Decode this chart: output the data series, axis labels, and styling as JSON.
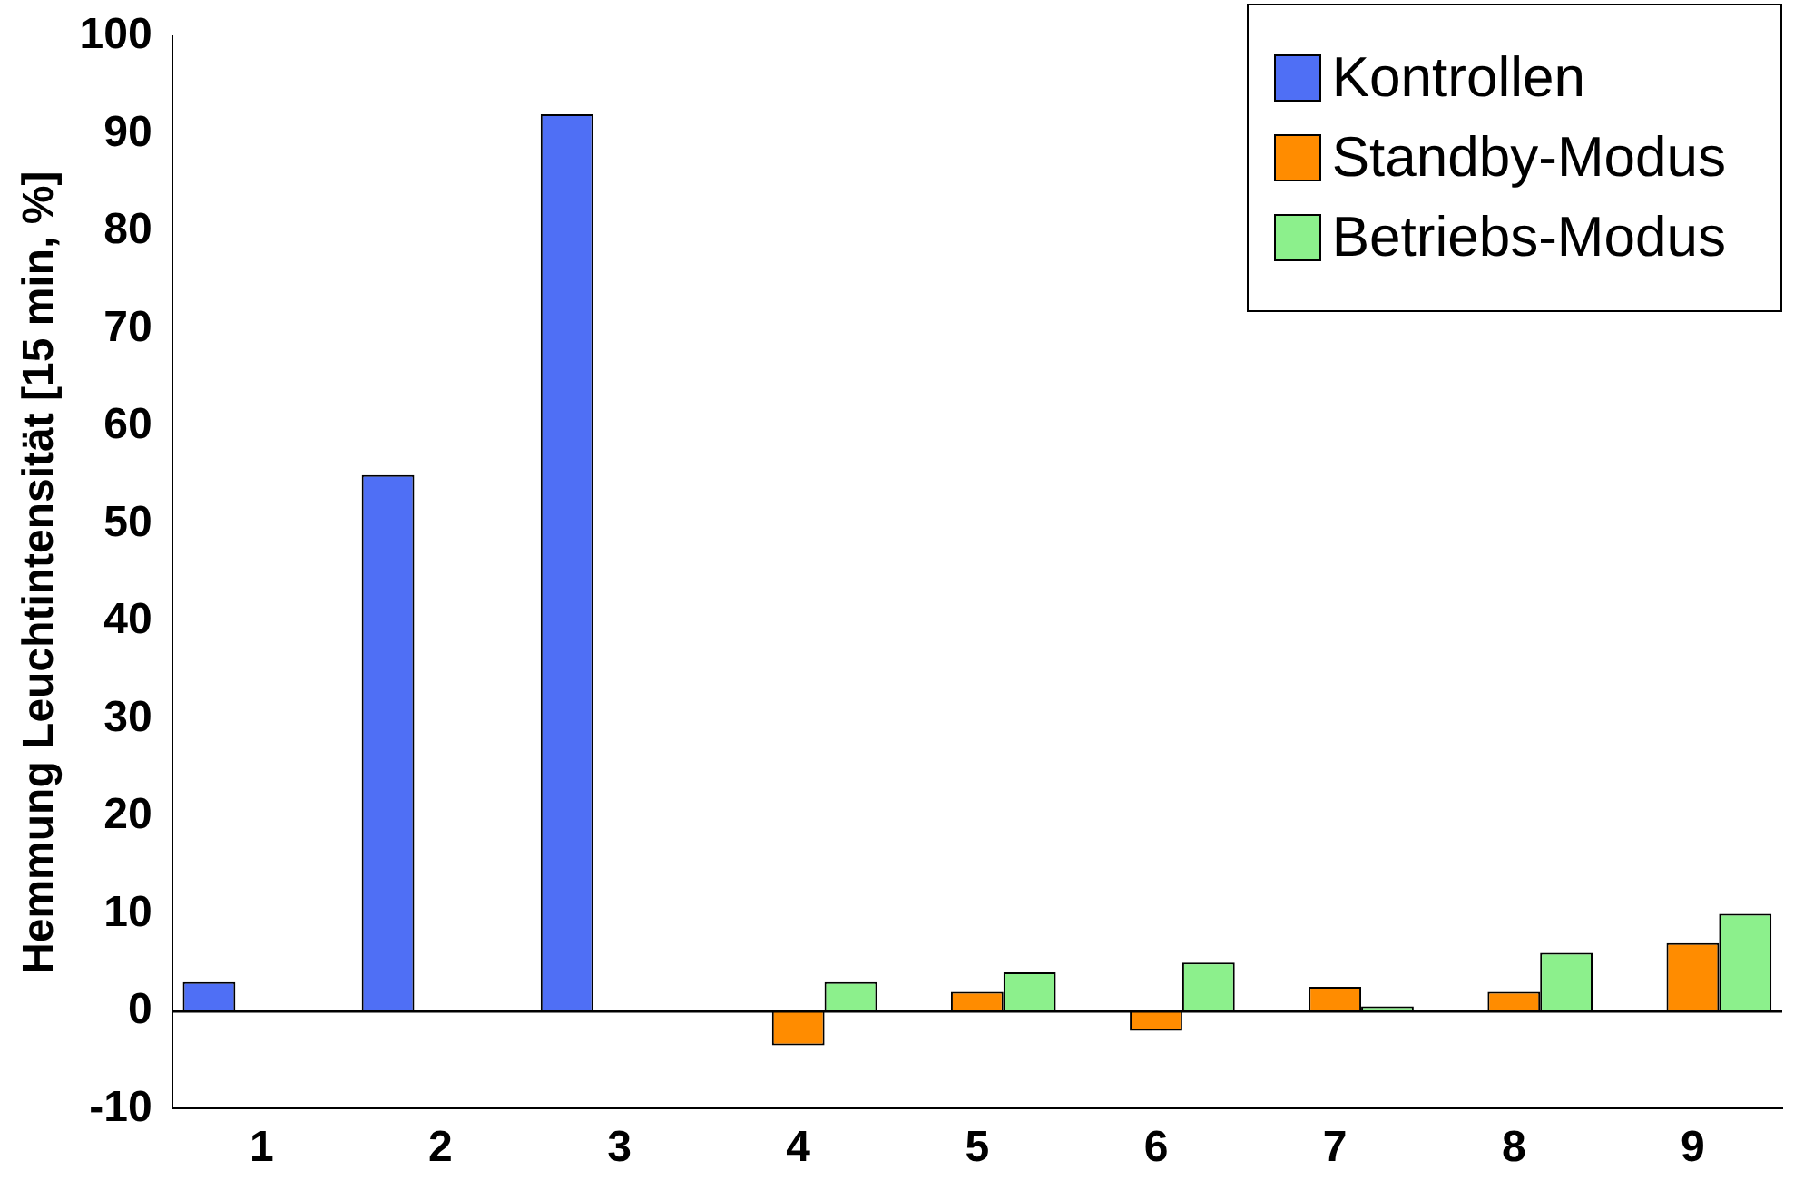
{
  "chart_data": {
    "type": "bar",
    "ylabel": "Hemmung Leuchtintensität [15 min, %]",
    "categories": [
      "1",
      "2",
      "3",
      "4",
      "5",
      "6",
      "7",
      "8",
      "9"
    ],
    "series": [
      {
        "name": "Kontrollen",
        "color": "#4f6ff5",
        "values": [
          3,
          55,
          92,
          0,
          0,
          0,
          0,
          0,
          0
        ]
      },
      {
        "name": "Standby-Modus",
        "color": "#ff8c00",
        "values": [
          0,
          0,
          0,
          -3.5,
          2,
          -2,
          2.5,
          2,
          7
        ]
      },
      {
        "name": "Betriebs-Modus",
        "color": "#8cf08c",
        "values": [
          0,
          0,
          0,
          3,
          4,
          5,
          0.5,
          6,
          10
        ]
      }
    ],
    "ylim": [
      -10,
      100
    ],
    "yticks": [
      -10,
      0,
      10,
      20,
      30,
      40,
      50,
      60,
      70,
      80,
      90,
      100
    ],
    "grid": false,
    "legend": "top right",
    "ref_lines": [
      {
        "axis": "y",
        "value": 0,
        "color": "#000000"
      }
    ]
  }
}
